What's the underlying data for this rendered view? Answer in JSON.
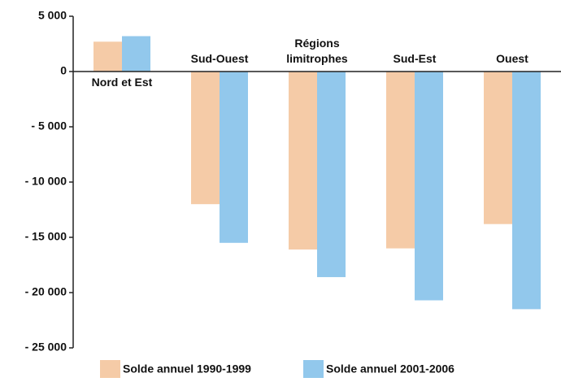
{
  "chart_data": {
    "type": "bar",
    "categories": [
      "Nord et Est",
      "Sud-Ouest",
      "Régions limitrophes",
      "Sud-Est",
      "Ouest"
    ],
    "series": [
      {
        "name": "Solde annuel 1990-1999",
        "color": "#f5cba7",
        "values": [
          2700,
          -12000,
          -16100,
          -16000,
          -13800
        ]
      },
      {
        "name": "Solde annuel 2001-2006",
        "color": "#92c8ec",
        "values": [
          3200,
          -15500,
          -18600,
          -20700,
          -21500
        ]
      }
    ],
    "ylim": [
      -25000,
      5000
    ],
    "yticks": [
      {
        "value": -25000,
        "label": "- 25 000"
      },
      {
        "value": -20000,
        "label": "- 20 000"
      },
      {
        "value": -15000,
        "label": "- 15 000"
      },
      {
        "value": -10000,
        "label": "- 10 000"
      },
      {
        "value": -5000,
        "label": "- 5 000"
      },
      0,
      {
        "value": 5000,
        "label": "5 000"
      }
    ],
    "grid": false
  }
}
